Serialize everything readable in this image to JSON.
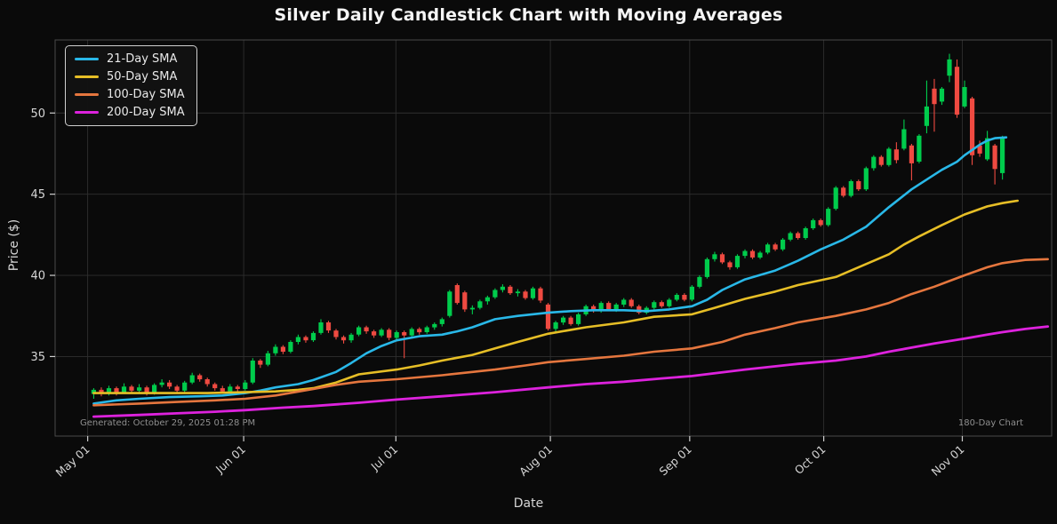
{
  "chart_data": {
    "type": "candlestick",
    "title": "Silver Daily Candlestick Chart with Moving Averages",
    "xlabel": "Date",
    "ylabel": "Price ($)",
    "ylim": [
      30.1,
      54.5
    ],
    "xlim": [
      -5.1,
      126.5
    ],
    "y_ticks": [
      35,
      40,
      45,
      50
    ],
    "x_ticks": [
      {
        "pos": -0.8,
        "label": "May 01"
      },
      {
        "pos": 19.8,
        "label": "Jun 01"
      },
      {
        "pos": 39.9,
        "label": "Jul 01"
      },
      {
        "pos": 60.3,
        "label": "Aug 01"
      },
      {
        "pos": 78.7,
        "label": "Sep 01"
      },
      {
        "pos": 96.4,
        "label": "Oct 01"
      },
      {
        "pos": 114.7,
        "label": "Nov 01"
      }
    ],
    "grid": true,
    "legend_position": "upper left",
    "colors": {
      "up": "#00cc4c",
      "down": "#ef4a41",
      "grid": "#2f2f2f",
      "spine": "#4a4a4a",
      "tick": "#cfcfcf",
      "tick_text": "#d6d6d6",
      "background": "#0a0a0a"
    },
    "candles": [
      [
        32.7,
        33.05,
        32.4,
        32.95
      ],
      [
        32.95,
        33.1,
        32.55,
        32.7
      ],
      [
        32.7,
        33.2,
        32.6,
        33.05
      ],
      [
        33.05,
        33.15,
        32.6,
        32.8
      ],
      [
        32.8,
        33.35,
        32.7,
        33.15
      ],
      [
        33.15,
        33.25,
        32.75,
        32.9
      ],
      [
        32.9,
        33.3,
        32.8,
        33.1
      ],
      [
        33.1,
        33.2,
        32.6,
        32.75
      ],
      [
        32.75,
        33.35,
        32.65,
        33.25
      ],
      [
        33.25,
        33.6,
        33.1,
        33.4
      ],
      [
        33.4,
        33.55,
        33.0,
        33.15
      ],
      [
        33.15,
        33.25,
        32.75,
        32.9
      ],
      [
        32.9,
        33.5,
        32.8,
        33.4
      ],
      [
        33.4,
        34.0,
        33.3,
        33.85
      ],
      [
        33.85,
        33.95,
        33.45,
        33.6
      ],
      [
        33.6,
        33.7,
        33.15,
        33.3
      ],
      [
        33.3,
        33.4,
        32.9,
        33.05
      ],
      [
        33.05,
        33.2,
        32.7,
        32.85
      ],
      [
        32.85,
        33.3,
        32.75,
        33.15
      ],
      [
        33.15,
        33.25,
        32.85,
        33.0
      ],
      [
        33.0,
        33.55,
        32.9,
        33.4
      ],
      [
        33.4,
        34.9,
        33.3,
        34.75
      ],
      [
        34.75,
        34.85,
        34.3,
        34.5
      ],
      [
        34.5,
        35.35,
        34.4,
        35.2
      ],
      [
        35.2,
        35.75,
        35.05,
        35.6
      ],
      [
        35.6,
        35.7,
        35.15,
        35.3
      ],
      [
        35.3,
        36.0,
        35.2,
        35.9
      ],
      [
        35.9,
        36.35,
        35.75,
        36.2
      ],
      [
        36.2,
        36.3,
        35.85,
        36.0
      ],
      [
        36.0,
        36.55,
        35.9,
        36.45
      ],
      [
        36.45,
        37.3,
        36.35,
        37.1
      ],
      [
        37.1,
        37.2,
        36.45,
        36.6
      ],
      [
        36.6,
        36.7,
        36.05,
        36.2
      ],
      [
        36.2,
        36.3,
        35.8,
        36.0
      ],
      [
        36.0,
        36.45,
        35.85,
        36.35
      ],
      [
        36.35,
        36.9,
        36.25,
        36.8
      ],
      [
        36.8,
        36.9,
        36.4,
        36.55
      ],
      [
        36.55,
        36.65,
        36.15,
        36.3
      ],
      [
        36.3,
        36.75,
        36.2,
        36.65
      ],
      [
        36.65,
        36.75,
        36.0,
        36.15
      ],
      [
        36.15,
        36.6,
        36.05,
        36.5
      ],
      [
        36.5,
        36.6,
        34.9,
        36.3
      ],
      [
        36.3,
        36.8,
        36.2,
        36.7
      ],
      [
        36.7,
        36.8,
        36.35,
        36.5
      ],
      [
        36.5,
        36.9,
        36.4,
        36.8
      ],
      [
        36.8,
        37.1,
        36.65,
        37.0
      ],
      [
        37.0,
        37.4,
        36.85,
        37.3
      ],
      [
        37.5,
        39.1,
        37.4,
        39.0
      ],
      [
        39.4,
        39.5,
        38.2,
        38.3
      ],
      [
        38.95,
        39.05,
        37.75,
        37.9
      ],
      [
        37.9,
        38.15,
        37.6,
        38.0
      ],
      [
        38.0,
        38.5,
        37.9,
        38.4
      ],
      [
        38.4,
        38.75,
        38.2,
        38.65
      ],
      [
        38.65,
        39.2,
        38.55,
        39.1
      ],
      [
        39.1,
        39.45,
        38.95,
        39.3
      ],
      [
        39.3,
        39.4,
        38.8,
        38.9
      ],
      [
        38.9,
        39.15,
        38.7,
        39.0
      ],
      [
        39.0,
        39.1,
        38.5,
        38.6
      ],
      [
        38.6,
        39.3,
        38.5,
        39.2
      ],
      [
        39.2,
        39.3,
        38.3,
        38.45
      ],
      [
        38.2,
        38.3,
        36.6,
        36.7
      ],
      [
        36.7,
        37.2,
        36.55,
        37.1
      ],
      [
        37.1,
        37.5,
        36.95,
        37.4
      ],
      [
        37.4,
        37.5,
        36.9,
        37.0
      ],
      [
        37.0,
        37.7,
        36.9,
        37.6
      ],
      [
        37.6,
        38.2,
        37.5,
        38.1
      ],
      [
        38.1,
        38.2,
        37.7,
        37.8
      ],
      [
        37.8,
        38.4,
        37.7,
        38.3
      ],
      [
        38.3,
        38.4,
        37.8,
        37.9
      ],
      [
        37.9,
        38.3,
        37.75,
        38.2
      ],
      [
        38.2,
        38.6,
        38.05,
        38.5
      ],
      [
        38.5,
        38.6,
        38.0,
        38.1
      ],
      [
        38.1,
        38.2,
        37.6,
        37.7
      ],
      [
        37.7,
        38.1,
        37.6,
        38.0
      ],
      [
        38.0,
        38.45,
        37.9,
        38.35
      ],
      [
        38.35,
        38.45,
        38.0,
        38.1
      ],
      [
        38.1,
        38.6,
        38.0,
        38.5
      ],
      [
        38.5,
        38.9,
        38.4,
        38.8
      ],
      [
        38.8,
        38.9,
        38.4,
        38.5
      ],
      [
        38.5,
        39.4,
        38.4,
        39.3
      ],
      [
        39.3,
        40.0,
        39.2,
        39.9
      ],
      [
        39.9,
        41.1,
        39.8,
        41.0
      ],
      [
        41.0,
        41.45,
        40.85,
        41.3
      ],
      [
        41.3,
        41.4,
        40.7,
        40.8
      ],
      [
        40.8,
        40.9,
        40.35,
        40.5
      ],
      [
        40.5,
        41.3,
        40.4,
        41.2
      ],
      [
        41.2,
        41.6,
        41.05,
        41.5
      ],
      [
        41.5,
        41.6,
        41.0,
        41.1
      ],
      [
        41.1,
        41.5,
        41.0,
        41.4
      ],
      [
        41.4,
        42.0,
        41.3,
        41.9
      ],
      [
        41.9,
        42.0,
        41.5,
        41.6
      ],
      [
        41.6,
        42.3,
        41.5,
        42.2
      ],
      [
        42.2,
        42.7,
        42.1,
        42.6
      ],
      [
        42.6,
        42.7,
        42.2,
        42.3
      ],
      [
        42.3,
        43.0,
        42.2,
        42.9
      ],
      [
        42.9,
        43.5,
        42.8,
        43.4
      ],
      [
        43.4,
        43.5,
        43.0,
        43.1
      ],
      [
        43.1,
        44.2,
        43.0,
        44.1
      ],
      [
        44.1,
        45.5,
        44.0,
        45.4
      ],
      [
        45.4,
        45.5,
        44.8,
        44.9
      ],
      [
        44.9,
        45.9,
        44.8,
        45.8
      ],
      [
        45.8,
        45.9,
        45.2,
        45.3
      ],
      [
        45.3,
        46.7,
        45.2,
        46.6
      ],
      [
        46.6,
        47.4,
        46.45,
        47.3
      ],
      [
        47.3,
        47.4,
        46.7,
        46.8
      ],
      [
        46.8,
        47.9,
        46.7,
        47.8
      ],
      [
        47.76,
        48.2,
        46.9,
        47.1
      ],
      [
        47.8,
        49.6,
        47.7,
        49.0
      ],
      [
        48.0,
        48.1,
        45.85,
        46.9
      ],
      [
        47.0,
        48.7,
        46.9,
        48.6
      ],
      [
        49.2,
        52.0,
        48.75,
        50.4
      ],
      [
        51.5,
        52.1,
        48.85,
        50.55
      ],
      [
        50.7,
        51.6,
        50.5,
        51.5
      ],
      [
        52.3,
        53.65,
        51.9,
        53.3
      ],
      [
        52.85,
        53.3,
        49.7,
        49.9
      ],
      [
        50.4,
        52.0,
        50.3,
        51.6
      ],
      [
        50.9,
        51.0,
        46.8,
        47.4
      ],
      [
        48.0,
        48.3,
        47.3,
        47.5
      ],
      [
        47.15,
        48.9,
        47.05,
        48.45
      ],
      [
        48.0,
        48.1,
        45.6,
        46.55
      ],
      [
        46.3,
        48.6,
        45.9,
        48.45
      ]
    ],
    "series": [
      {
        "name": "21-Day SMA",
        "color": "#29b8e8",
        "width": 2.6,
        "points": [
          [
            0,
            32.1
          ],
          [
            3,
            32.3
          ],
          [
            6,
            32.4
          ],
          [
            10,
            32.5
          ],
          [
            14,
            32.55
          ],
          [
            17,
            32.6
          ],
          [
            20,
            32.75
          ],
          [
            22,
            32.9
          ],
          [
            24,
            33.1
          ],
          [
            27,
            33.3
          ],
          [
            29,
            33.55
          ],
          [
            32,
            34.05
          ],
          [
            34,
            34.6
          ],
          [
            36,
            35.2
          ],
          [
            38,
            35.65
          ],
          [
            40,
            36.0
          ],
          [
            43,
            36.25
          ],
          [
            46,
            36.35
          ],
          [
            48,
            36.55
          ],
          [
            50,
            36.8
          ],
          [
            53,
            37.3
          ],
          [
            56,
            37.5
          ],
          [
            60,
            37.7
          ],
          [
            63,
            37.8
          ],
          [
            66,
            37.85
          ],
          [
            70,
            37.85
          ],
          [
            73,
            37.8
          ],
          [
            76,
            37.9
          ],
          [
            79,
            38.1
          ],
          [
            81,
            38.5
          ],
          [
            83,
            39.1
          ],
          [
            86,
            39.75
          ],
          [
            90,
            40.3
          ],
          [
            93,
            40.9
          ],
          [
            96,
            41.6
          ],
          [
            99,
            42.2
          ],
          [
            102,
            43.0
          ],
          [
            105,
            44.2
          ],
          [
            108,
            45.3
          ],
          [
            110,
            45.9
          ],
          [
            112,
            46.5
          ],
          [
            114,
            47.0
          ],
          [
            115,
            47.4
          ],
          [
            117,
            48.05
          ],
          [
            118,
            48.3
          ],
          [
            119,
            48.45
          ],
          [
            120.5,
            48.5
          ]
        ]
      },
      {
        "name": "50-Day SMA",
        "color": "#e6be26",
        "width": 2.6,
        "points": [
          [
            0,
            32.75
          ],
          [
            5,
            32.75
          ],
          [
            10,
            32.75
          ],
          [
            15,
            32.75
          ],
          [
            20,
            32.8
          ],
          [
            24,
            32.85
          ],
          [
            27,
            32.95
          ],
          [
            29,
            33.05
          ],
          [
            32,
            33.4
          ],
          [
            35,
            33.9
          ],
          [
            40,
            34.2
          ],
          [
            43,
            34.45
          ],
          [
            46,
            34.75
          ],
          [
            50,
            35.1
          ],
          [
            53,
            35.5
          ],
          [
            56,
            35.9
          ],
          [
            60,
            36.4
          ],
          [
            65,
            36.8
          ],
          [
            70,
            37.1
          ],
          [
            74,
            37.45
          ],
          [
            79,
            37.6
          ],
          [
            82,
            38.0
          ],
          [
            86,
            38.55
          ],
          [
            90,
            39.0
          ],
          [
            93,
            39.4
          ],
          [
            98,
            39.9
          ],
          [
            101,
            40.5
          ],
          [
            105,
            41.3
          ],
          [
            107,
            41.9
          ],
          [
            109,
            42.4
          ],
          [
            112,
            43.1
          ],
          [
            115,
            43.75
          ],
          [
            118,
            44.25
          ],
          [
            120,
            44.45
          ],
          [
            122,
            44.6
          ]
        ]
      },
      {
        "name": "100-Day SMA",
        "color": "#e5763e",
        "width": 2.6,
        "points": [
          [
            0,
            32.0
          ],
          [
            6,
            32.1
          ],
          [
            11,
            32.2
          ],
          [
            16,
            32.3
          ],
          [
            20,
            32.4
          ],
          [
            24,
            32.6
          ],
          [
            29,
            33.0
          ],
          [
            32,
            33.25
          ],
          [
            35,
            33.45
          ],
          [
            40,
            33.6
          ],
          [
            46,
            33.85
          ],
          [
            50,
            34.05
          ],
          [
            53,
            34.2
          ],
          [
            57,
            34.45
          ],
          [
            60,
            34.65
          ],
          [
            65,
            34.85
          ],
          [
            70,
            35.05
          ],
          [
            74,
            35.3
          ],
          [
            79,
            35.5
          ],
          [
            83,
            35.9
          ],
          [
            86,
            36.35
          ],
          [
            90,
            36.75
          ],
          [
            93,
            37.1
          ],
          [
            98,
            37.5
          ],
          [
            102,
            37.9
          ],
          [
            105,
            38.3
          ],
          [
            108,
            38.85
          ],
          [
            111,
            39.3
          ],
          [
            113,
            39.65
          ],
          [
            115,
            40.0
          ],
          [
            118,
            40.5
          ],
          [
            120,
            40.75
          ],
          [
            123,
            40.95
          ],
          [
            126,
            41.0
          ]
        ]
      },
      {
        "name": "200-Day SMA",
        "color": "#dd22dd",
        "width": 2.8,
        "points": [
          [
            0,
            31.3
          ],
          [
            6,
            31.4
          ],
          [
            11,
            31.5
          ],
          [
            16,
            31.6
          ],
          [
            20,
            31.7
          ],
          [
            25,
            31.85
          ],
          [
            29,
            31.95
          ],
          [
            35,
            32.15
          ],
          [
            40,
            32.35
          ],
          [
            46,
            32.55
          ],
          [
            53,
            32.8
          ],
          [
            60,
            33.1
          ],
          [
            65,
            33.3
          ],
          [
            70,
            33.45
          ],
          [
            75,
            33.65
          ],
          [
            79,
            33.8
          ],
          [
            86,
            34.2
          ],
          [
            93,
            34.55
          ],
          [
            98,
            34.75
          ],
          [
            102,
            35.0
          ],
          [
            105,
            35.3
          ],
          [
            111,
            35.8
          ],
          [
            115,
            36.1
          ],
          [
            118,
            36.35
          ],
          [
            120,
            36.5
          ],
          [
            123,
            36.7
          ],
          [
            126,
            36.85
          ]
        ]
      }
    ],
    "annotations": {
      "generated": "Generated: October 29, 2025 01:28 PM",
      "range_label": "180-Day Chart"
    }
  }
}
